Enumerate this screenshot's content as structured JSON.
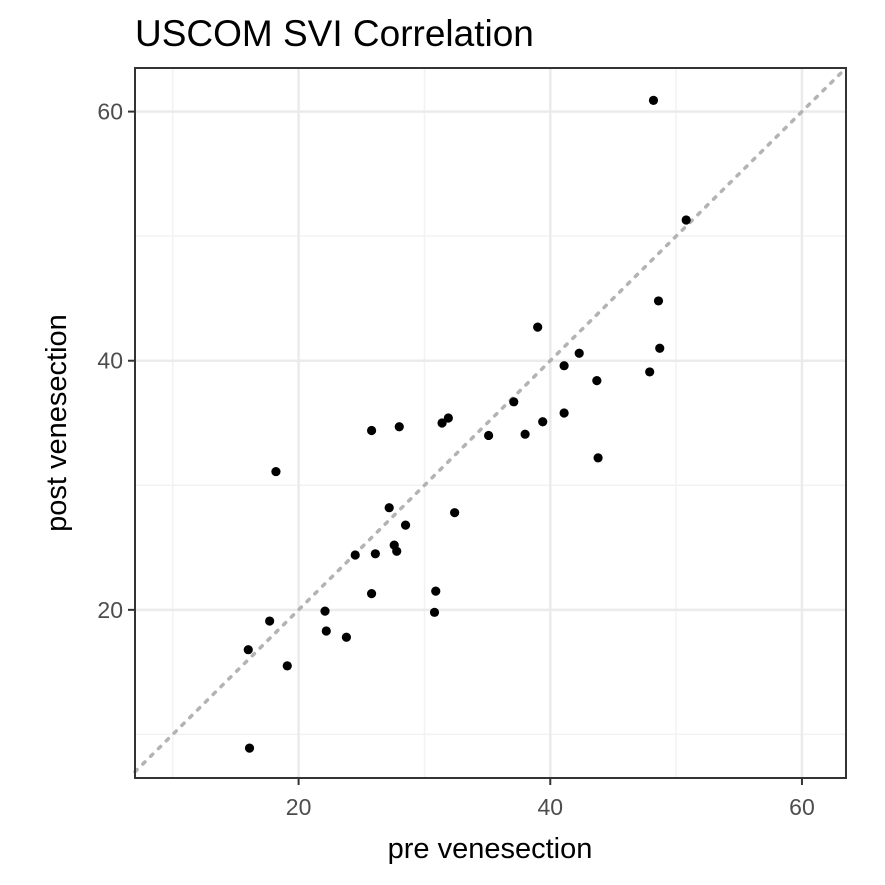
{
  "chart_data": {
    "type": "scatter",
    "title": "USCOM SVI   Correlation",
    "xlabel": "pre venesection",
    "ylabel": "post venesection",
    "xlim": [
      7,
      63.5
    ],
    "ylim": [
      6.5,
      63.5
    ],
    "x_ticks": [
      20,
      40,
      60
    ],
    "y_ticks": [
      20,
      40,
      60
    ],
    "x_tick_labels": [
      "20",
      "40",
      "60"
    ],
    "y_tick_labels": [
      "20",
      "40",
      "60"
    ],
    "x_minor_ticks": [
      10,
      30,
      50
    ],
    "y_minor_ticks": [
      10,
      30,
      50
    ],
    "grid": true,
    "reference_line": "identity (dotted, y = x)",
    "colors": {
      "points": "#000000",
      "reference_line": "#b3b3b3",
      "grid_major": "#ebebeb",
      "grid_minor": "#f2f2f2",
      "panel_border": "#333333"
    },
    "points": [
      {
        "x": 16.0,
        "y": 16.8
      },
      {
        "x": 16.1,
        "y": 8.9
      },
      {
        "x": 17.7,
        "y": 19.1
      },
      {
        "x": 18.2,
        "y": 31.1
      },
      {
        "x": 19.1,
        "y": 15.5
      },
      {
        "x": 22.1,
        "y": 19.9
      },
      {
        "x": 22.2,
        "y": 18.3
      },
      {
        "x": 23.8,
        "y": 17.8
      },
      {
        "x": 24.5,
        "y": 24.4
      },
      {
        "x": 25.8,
        "y": 21.3
      },
      {
        "x": 25.8,
        "y": 34.4
      },
      {
        "x": 26.1,
        "y": 24.5
      },
      {
        "x": 27.2,
        "y": 28.2
      },
      {
        "x": 27.6,
        "y": 25.2
      },
      {
        "x": 27.8,
        "y": 24.7
      },
      {
        "x": 28.0,
        "y": 34.7
      },
      {
        "x": 28.5,
        "y": 26.8
      },
      {
        "x": 30.8,
        "y": 19.8
      },
      {
        "x": 30.9,
        "y": 21.5
      },
      {
        "x": 31.4,
        "y": 35.0
      },
      {
        "x": 31.9,
        "y": 35.4
      },
      {
        "x": 32.4,
        "y": 27.8
      },
      {
        "x": 35.1,
        "y": 34.0
      },
      {
        "x": 37.1,
        "y": 36.7
      },
      {
        "x": 38.0,
        "y": 34.1
      },
      {
        "x": 39.0,
        "y": 42.7
      },
      {
        "x": 39.4,
        "y": 35.1
      },
      {
        "x": 41.1,
        "y": 39.6
      },
      {
        "x": 41.1,
        "y": 35.8
      },
      {
        "x": 42.3,
        "y": 40.6
      },
      {
        "x": 43.7,
        "y": 38.4
      },
      {
        "x": 43.8,
        "y": 32.2
      },
      {
        "x": 47.9,
        "y": 39.1
      },
      {
        "x": 48.2,
        "y": 60.9
      },
      {
        "x": 48.6,
        "y": 44.8
      },
      {
        "x": 48.7,
        "y": 41.0
      },
      {
        "x": 50.8,
        "y": 51.3
      }
    ]
  }
}
